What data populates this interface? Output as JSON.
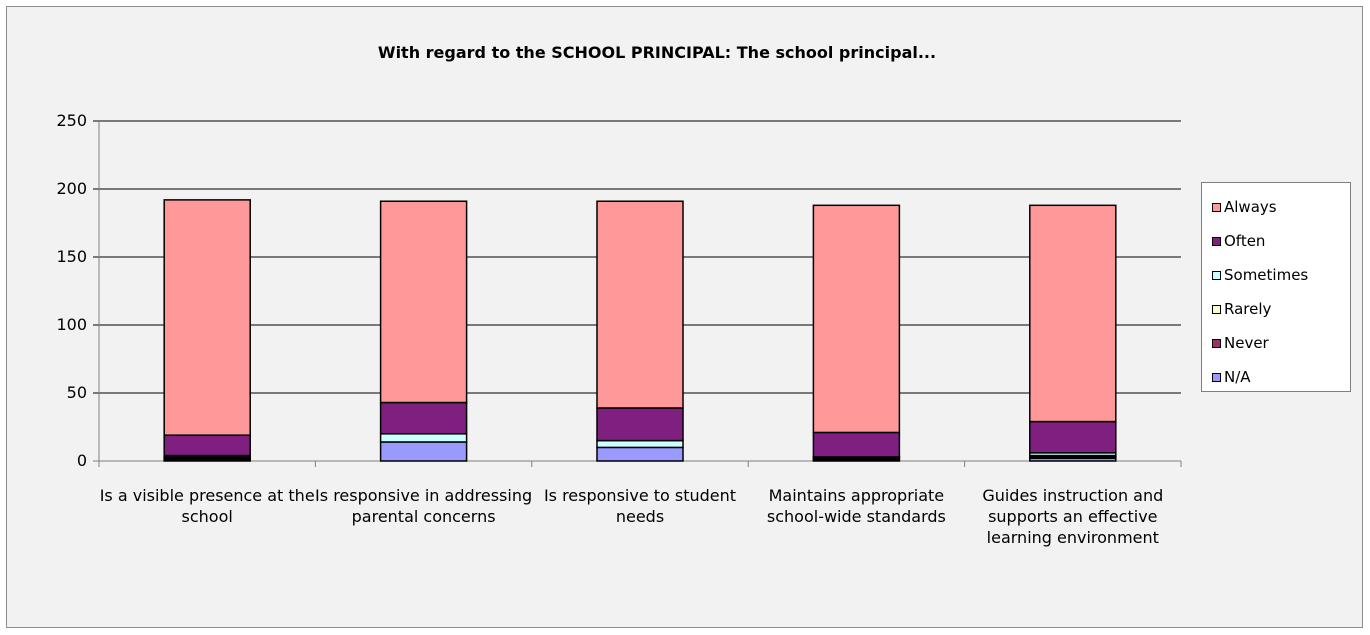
{
  "chart_data": {
    "type": "bar",
    "stacked": true,
    "title": "With regard to the SCHOOL PRINCIPAL: The school principal...",
    "xlabel": "",
    "ylabel": "",
    "ylim": [
      0,
      250
    ],
    "yticks": [
      "0",
      "50",
      "100",
      "150",
      "200",
      "250"
    ],
    "grid": true,
    "legend_position": "right",
    "categories": [
      "Is a visible presence at the school",
      "Is responsive in addressing parental concerns",
      "Is responsive to student needs",
      "Maintains appropriate school-wide standards",
      "Guides instruction and supports an effective learning environment"
    ],
    "series": [
      {
        "name": "N/A",
        "color": "#9999ff",
        "values": [
          1,
          14,
          10,
          1,
          2
        ]
      },
      {
        "name": "Never",
        "color": "#993366",
        "values": [
          1,
          0,
          0,
          1,
          1
        ]
      },
      {
        "name": "Rarely",
        "color": "#ffffcc",
        "values": [
          1,
          0,
          0,
          0,
          1
        ]
      },
      {
        "name": "Sometimes",
        "color": "#ccffff",
        "values": [
          1,
          6,
          5,
          1,
          2
        ]
      },
      {
        "name": "Often",
        "color": "#7f1f7f",
        "values": [
          15,
          23,
          24,
          18,
          23
        ]
      },
      {
        "name": "Always",
        "color": "#ff9999",
        "values": [
          173,
          148,
          152,
          167,
          159
        ]
      }
    ]
  },
  "legend_order": [
    "Always",
    "Often",
    "Sometimes",
    "Rarely",
    "Never",
    "N/A"
  ]
}
